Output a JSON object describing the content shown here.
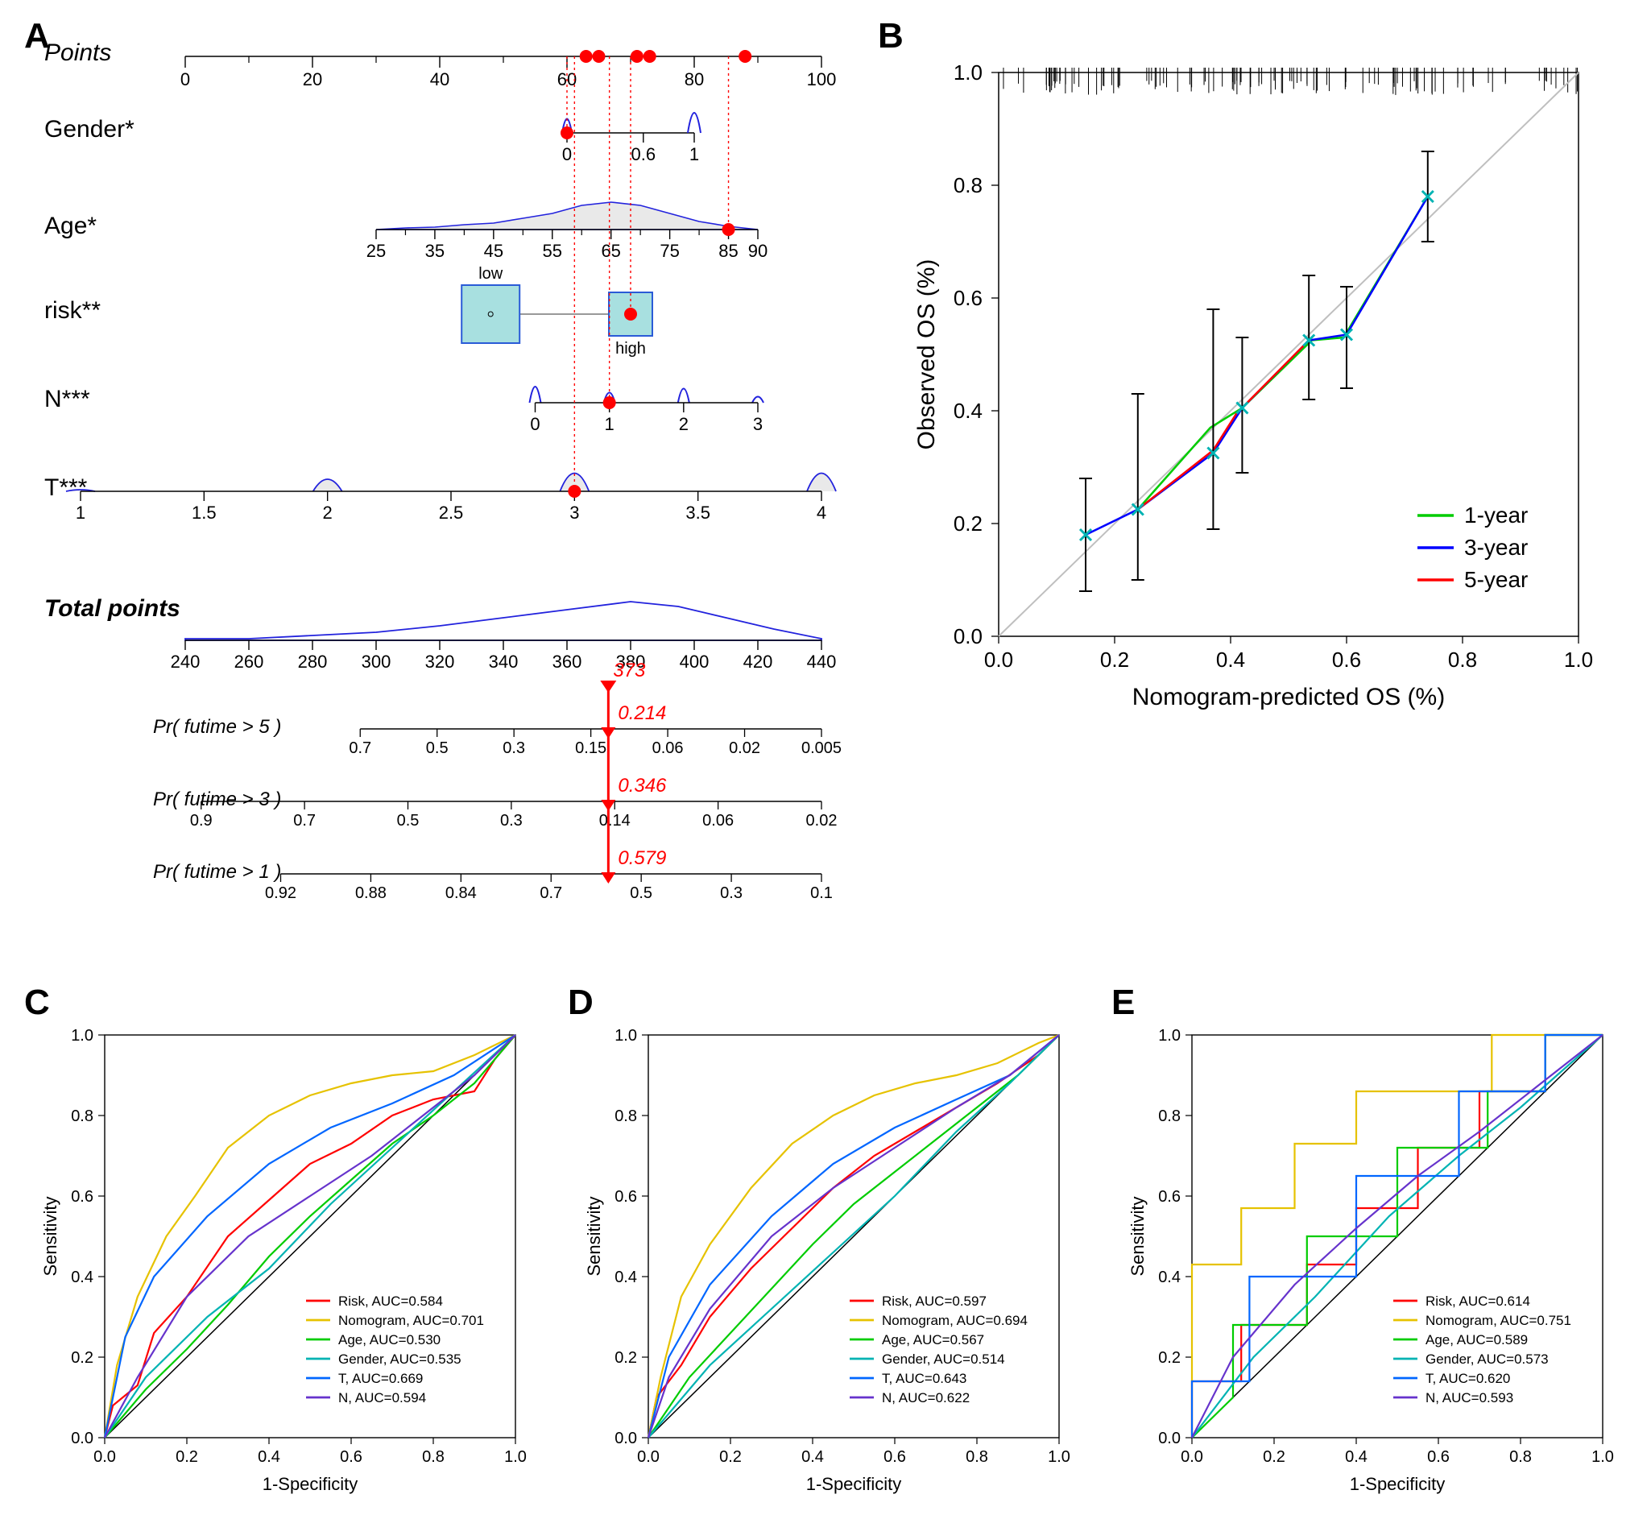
{
  "panels": {
    "A": "A",
    "B": "B",
    "C": "C",
    "D": "D",
    "E": "E"
  },
  "nomogram": {
    "font_label": 30,
    "font_tick": 22,
    "axis_color": "#000000",
    "red": "#ff0000",
    "blue": "#2222dd",
    "grey_fill": "#e9e9e9",
    "box_fill": "#a8e0e0",
    "box_stroke": "#2a5bd7",
    "points": {
      "label": "Points",
      "label_italic": true,
      "ticks": [
        0,
        20,
        40,
        60,
        80,
        100
      ],
      "minor": [
        10,
        30,
        50,
        70,
        90
      ]
    },
    "gender": {
      "label": "Gender*",
      "ticks": [
        0,
        0.6,
        1
      ]
    },
    "age": {
      "label": "Age*",
      "ticks": [
        25,
        35,
        45,
        55,
        65,
        75,
        85,
        90
      ],
      "minor": [
        30,
        40,
        50,
        60,
        70,
        80
      ]
    },
    "risk": {
      "label": "risk**",
      "low": "low",
      "high": "high"
    },
    "N": {
      "label": "N***",
      "ticks": [
        0,
        1,
        2,
        3
      ]
    },
    "T": {
      "label": "T***",
      "ticks": [
        1,
        1.5,
        2,
        2.5,
        3,
        3.5,
        4
      ]
    },
    "total": {
      "label": "Total points",
      "ticks": [
        240,
        260,
        280,
        300,
        320,
        340,
        360,
        380,
        400,
        420,
        440
      ]
    },
    "value_total": "373",
    "pr5": {
      "label": "Pr( futime > 5 )",
      "ticks": [
        "0.7",
        "0.5",
        "0.3",
        "0.15",
        "0.06",
        "0.02",
        "0.005"
      ],
      "value": "0.214"
    },
    "pr3": {
      "label": "Pr( futime > 3 )",
      "ticks": [
        "0.9",
        "0.7",
        "0.5",
        "0.3",
        "0.14",
        "0.06",
        "0.02"
      ],
      "value": "0.346"
    },
    "pr1": {
      "label": "Pr( futime > 1 )",
      "ticks": [
        "0.92",
        "0.88",
        "0.84",
        "0.7",
        "0.5",
        "0.3",
        "0.1"
      ],
      "value": "0.579"
    },
    "total_value_x": 373,
    "selected_points": [
      63,
      65,
      71,
      73,
      88
    ],
    "red_dots": [
      {
        "row": "gender",
        "x": 0
      },
      {
        "row": "risk",
        "x": 1
      },
      {
        "row": "N",
        "x": 1
      },
      {
        "row": "T",
        "x": 3
      },
      {
        "row": "age",
        "x": 85
      }
    ]
  },
  "calibration": {
    "xlabel": "Nomogram-predicted OS (%)",
    "ylabel": "Observed OS (%)",
    "xlim": [
      0,
      1
    ],
    "ylim": [
      0,
      1
    ],
    "ticks": [
      "0.0",
      "0.2",
      "0.4",
      "0.6",
      "0.8",
      "1.0"
    ],
    "tick_vals": [
      0.0,
      0.2,
      0.4,
      0.6,
      0.8,
      1.0
    ],
    "diag_color": "#bfbfbf",
    "legend": [
      {
        "label": "1-year",
        "color": "#00cc00"
      },
      {
        "label": "3-year",
        "color": "#0000ff"
      },
      {
        "label": "5-year",
        "color": "#ff0000"
      }
    ],
    "marker": {
      "color": "#00b3b3",
      "shape": "x"
    },
    "series": {
      "g1": [
        {
          "x": 0.24,
          "y": 0.225,
          "lo": 0.14,
          "hi": 0.32
        },
        {
          "x": 0.365,
          "y": 0.37,
          "lo": 0.26,
          "hi": 0.45
        },
        {
          "x": 0.42,
          "y": 0.405,
          "lo": 0.28,
          "hi": 0.54
        },
        {
          "x": 0.54,
          "y": 0.525,
          "lo": 0.41,
          "hi": 0.63
        },
        {
          "x": 0.595,
          "y": 0.53,
          "lo": 0.41,
          "hi": 0.64
        },
        {
          "x": 0.74,
          "y": 0.78,
          "lo": 0.71,
          "hi": 0.84
        }
      ],
      "g3": [
        {
          "x": 0.15,
          "y": 0.18,
          "lo": 0.08,
          "hi": 0.28
        },
        {
          "x": 0.24,
          "y": 0.225,
          "lo": 0.1,
          "hi": 0.43
        },
        {
          "x": 0.37,
          "y": 0.325,
          "lo": 0.19,
          "hi": 0.58
        },
        {
          "x": 0.42,
          "y": 0.405,
          "lo": 0.29,
          "hi": 0.53
        },
        {
          "x": 0.535,
          "y": 0.525,
          "lo": 0.42,
          "hi": 0.64
        },
        {
          "x": 0.6,
          "y": 0.535,
          "lo": 0.44,
          "hi": 0.62
        },
        {
          "x": 0.74,
          "y": 0.78,
          "lo": 0.7,
          "hi": 0.86
        }
      ],
      "g5": [
        {
          "x": 0.24,
          "y": 0.225
        },
        {
          "x": 0.37,
          "y": 0.33
        },
        {
          "x": 0.41,
          "y": 0.395
        },
        {
          "x": 0.535,
          "y": 0.525
        }
      ]
    }
  },
  "roc_common": {
    "xlabel": "1-Specificity",
    "ylabel": "Sensitivity",
    "xlim": [
      0,
      1
    ],
    "ylim": [
      0,
      1
    ],
    "ticks": [
      "0.0",
      "0.2",
      "0.4",
      "0.6",
      "0.8",
      "1.0"
    ],
    "tick_vals": [
      0.0,
      0.2,
      0.4,
      0.6,
      0.8,
      1.0
    ],
    "diag_color": "#000000",
    "colors": {
      "Risk": "#ff0000",
      "Nomogram": "#e6c200",
      "Age": "#00cc00",
      "Gender": "#00b3b3",
      "T": "#0066ff",
      "N": "#6633cc"
    }
  },
  "rocC": {
    "legend": [
      {
        "key": "Risk",
        "label": "Risk, AUC=0.584"
      },
      {
        "key": "Nomogram",
        "label": "Nomogram, AUC=0.701"
      },
      {
        "key": "Age",
        "label": "Age, AUC=0.530"
      },
      {
        "key": "Gender",
        "label": "Gender, AUC=0.535"
      },
      {
        "key": "T",
        "label": "T, AUC=0.669"
      },
      {
        "key": "N",
        "label": "N, AUC=0.594"
      }
    ],
    "curves": {
      "Risk": [
        [
          0,
          0
        ],
        [
          0.02,
          0.08
        ],
        [
          0.08,
          0.13
        ],
        [
          0.12,
          0.26
        ],
        [
          0.2,
          0.35
        ],
        [
          0.3,
          0.5
        ],
        [
          0.4,
          0.59
        ],
        [
          0.5,
          0.68
        ],
        [
          0.6,
          0.73
        ],
        [
          0.7,
          0.8
        ],
        [
          0.8,
          0.84
        ],
        [
          0.9,
          0.86
        ],
        [
          0.95,
          0.94
        ],
        [
          1,
          1
        ]
      ],
      "Nomogram": [
        [
          0,
          0
        ],
        [
          0.03,
          0.18
        ],
        [
          0.08,
          0.35
        ],
        [
          0.15,
          0.5
        ],
        [
          0.22,
          0.6
        ],
        [
          0.3,
          0.72
        ],
        [
          0.4,
          0.8
        ],
        [
          0.5,
          0.85
        ],
        [
          0.6,
          0.88
        ],
        [
          0.7,
          0.9
        ],
        [
          0.8,
          0.91
        ],
        [
          0.9,
          0.95
        ],
        [
          1,
          1
        ]
      ],
      "Age": [
        [
          0,
          0
        ],
        [
          0.1,
          0.12
        ],
        [
          0.2,
          0.22
        ],
        [
          0.3,
          0.33
        ],
        [
          0.4,
          0.45
        ],
        [
          0.5,
          0.55
        ],
        [
          0.6,
          0.64
        ],
        [
          0.7,
          0.73
        ],
        [
          0.8,
          0.8
        ],
        [
          0.9,
          0.88
        ],
        [
          1,
          1
        ]
      ],
      "Gender": [
        [
          0,
          0
        ],
        [
          0.1,
          0.15
        ],
        [
          0.25,
          0.3
        ],
        [
          0.4,
          0.42
        ],
        [
          0.55,
          0.58
        ],
        [
          0.7,
          0.72
        ],
        [
          0.85,
          0.86
        ],
        [
          1,
          1
        ]
      ],
      "T": [
        [
          0,
          0
        ],
        [
          0.05,
          0.25
        ],
        [
          0.12,
          0.4
        ],
        [
          0.25,
          0.55
        ],
        [
          0.4,
          0.68
        ],
        [
          0.55,
          0.77
        ],
        [
          0.7,
          0.83
        ],
        [
          0.85,
          0.9
        ],
        [
          1,
          1
        ]
      ],
      "N": [
        [
          0,
          0
        ],
        [
          0.08,
          0.15
        ],
        [
          0.2,
          0.35
        ],
        [
          0.35,
          0.5
        ],
        [
          0.5,
          0.6
        ],
        [
          0.65,
          0.7
        ],
        [
          0.8,
          0.82
        ],
        [
          0.9,
          0.9
        ],
        [
          1,
          1
        ]
      ]
    }
  },
  "rocD": {
    "legend": [
      {
        "key": "Risk",
        "label": "Risk, AUC=0.597"
      },
      {
        "key": "Nomogram",
        "label": "Nomogram, AUC=0.694"
      },
      {
        "key": "Age",
        "label": "Age, AUC=0.567"
      },
      {
        "key": "Gender",
        "label": "Gender, AUC=0.514"
      },
      {
        "key": "T",
        "label": "T, AUC=0.643"
      },
      {
        "key": "N",
        "label": "N, AUC=0.622"
      }
    ],
    "curves": {
      "Risk": [
        [
          0,
          0
        ],
        [
          0.02,
          0.1
        ],
        [
          0.08,
          0.18
        ],
        [
          0.15,
          0.3
        ],
        [
          0.25,
          0.42
        ],
        [
          0.35,
          0.52
        ],
        [
          0.45,
          0.62
        ],
        [
          0.55,
          0.7
        ],
        [
          0.65,
          0.76
        ],
        [
          0.75,
          0.82
        ],
        [
          0.85,
          0.88
        ],
        [
          0.95,
          0.95
        ],
        [
          1,
          1
        ]
      ],
      "Nomogram": [
        [
          0,
          0
        ],
        [
          0.03,
          0.15
        ],
        [
          0.08,
          0.35
        ],
        [
          0.15,
          0.48
        ],
        [
          0.25,
          0.62
        ],
        [
          0.35,
          0.73
        ],
        [
          0.45,
          0.8
        ],
        [
          0.55,
          0.85
        ],
        [
          0.65,
          0.88
        ],
        [
          0.75,
          0.9
        ],
        [
          0.85,
          0.93
        ],
        [
          0.95,
          0.98
        ],
        [
          1,
          1
        ]
      ],
      "Age": [
        [
          0,
          0
        ],
        [
          0.1,
          0.15
        ],
        [
          0.2,
          0.26
        ],
        [
          0.3,
          0.37
        ],
        [
          0.4,
          0.48
        ],
        [
          0.5,
          0.58
        ],
        [
          0.6,
          0.66
        ],
        [
          0.7,
          0.74
        ],
        [
          0.8,
          0.82
        ],
        [
          0.9,
          0.9
        ],
        [
          1,
          1
        ]
      ],
      "Gender": [
        [
          0,
          0
        ],
        [
          0.15,
          0.18
        ],
        [
          0.3,
          0.32
        ],
        [
          0.45,
          0.46
        ],
        [
          0.6,
          0.6
        ],
        [
          0.75,
          0.76
        ],
        [
          0.88,
          0.88
        ],
        [
          1,
          1
        ]
      ],
      "T": [
        [
          0,
          0
        ],
        [
          0.05,
          0.2
        ],
        [
          0.15,
          0.38
        ],
        [
          0.3,
          0.55
        ],
        [
          0.45,
          0.68
        ],
        [
          0.6,
          0.77
        ],
        [
          0.75,
          0.84
        ],
        [
          0.88,
          0.9
        ],
        [
          1,
          1
        ]
      ],
      "N": [
        [
          0,
          0
        ],
        [
          0.05,
          0.15
        ],
        [
          0.15,
          0.32
        ],
        [
          0.3,
          0.5
        ],
        [
          0.45,
          0.62
        ],
        [
          0.6,
          0.72
        ],
        [
          0.75,
          0.82
        ],
        [
          0.88,
          0.9
        ],
        [
          1,
          1
        ]
      ]
    }
  },
  "rocE": {
    "legend": [
      {
        "key": "Risk",
        "label": "Risk, AUC=0.614"
      },
      {
        "key": "Nomogram",
        "label": "Nomogram, AUC=0.751"
      },
      {
        "key": "Age",
        "label": "Age, AUC=0.589"
      },
      {
        "key": "Gender",
        "label": "Gender, AUC=0.573"
      },
      {
        "key": "T",
        "label": "T, AUC=0.620"
      },
      {
        "key": "N",
        "label": "N, AUC=0.593"
      }
    ],
    "curves": {
      "Risk": [
        [
          0,
          0
        ],
        [
          0,
          0.14
        ],
        [
          0.12,
          0.14
        ],
        [
          0.12,
          0.28
        ],
        [
          0.28,
          0.28
        ],
        [
          0.28,
          0.43
        ],
        [
          0.4,
          0.43
        ],
        [
          0.4,
          0.57
        ],
        [
          0.55,
          0.57
        ],
        [
          0.55,
          0.72
        ],
        [
          0.7,
          0.72
        ],
        [
          0.7,
          0.86
        ],
        [
          0.86,
          0.86
        ],
        [
          0.86,
          1
        ],
        [
          1,
          1
        ]
      ],
      "Nomogram": [
        [
          0,
          0
        ],
        [
          0,
          0.43
        ],
        [
          0.12,
          0.43
        ],
        [
          0.12,
          0.57
        ],
        [
          0.25,
          0.57
        ],
        [
          0.25,
          0.73
        ],
        [
          0.4,
          0.73
        ],
        [
          0.4,
          0.86
        ],
        [
          0.6,
          0.86
        ],
        [
          0.6,
          0.86
        ],
        [
          0.73,
          0.86
        ],
        [
          0.73,
          1
        ],
        [
          1,
          1
        ]
      ],
      "Age": [
        [
          0,
          0
        ],
        [
          0.1,
          0.1
        ],
        [
          0.1,
          0.28
        ],
        [
          0.28,
          0.28
        ],
        [
          0.28,
          0.5
        ],
        [
          0.5,
          0.5
        ],
        [
          0.5,
          0.72
        ],
        [
          0.72,
          0.72
        ],
        [
          0.72,
          0.86
        ],
        [
          0.86,
          0.86
        ],
        [
          0.86,
          1
        ],
        [
          1,
          1
        ]
      ],
      "Gender": [
        [
          0,
          0
        ],
        [
          0.15,
          0.2
        ],
        [
          0.3,
          0.35
        ],
        [
          0.48,
          0.55
        ],
        [
          0.65,
          0.7
        ],
        [
          0.8,
          0.82
        ],
        [
          1,
          1
        ]
      ],
      "T": [
        [
          0,
          0
        ],
        [
          0,
          0.14
        ],
        [
          0.14,
          0.14
        ],
        [
          0.14,
          0.4
        ],
        [
          0.4,
          0.4
        ],
        [
          0.4,
          0.65
        ],
        [
          0.65,
          0.65
        ],
        [
          0.65,
          0.86
        ],
        [
          0.86,
          0.86
        ],
        [
          0.86,
          1
        ],
        [
          1,
          1
        ]
      ],
      "N": [
        [
          0,
          0
        ],
        [
          0.1,
          0.2
        ],
        [
          0.25,
          0.38
        ],
        [
          0.4,
          0.52
        ],
        [
          0.55,
          0.65
        ],
        [
          0.7,
          0.76
        ],
        [
          0.85,
          0.88
        ],
        [
          1,
          1
        ]
      ]
    }
  }
}
